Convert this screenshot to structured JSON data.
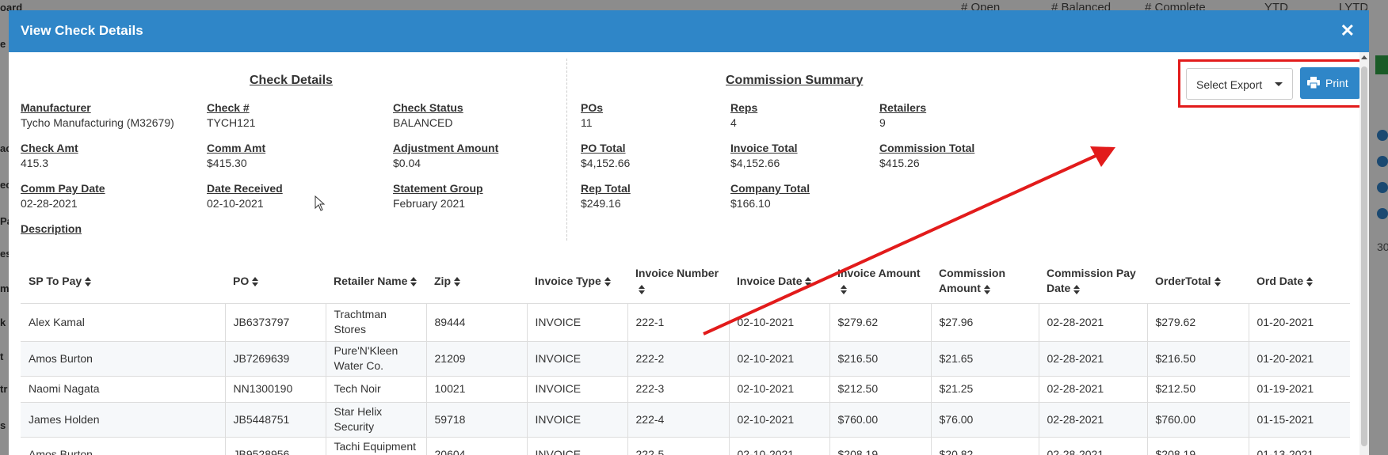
{
  "background": {
    "header_cols": [
      "# Open",
      "# Balanced",
      "# Complete",
      "YTD",
      "LYTD"
    ],
    "side_fragments": [
      "oard",
      "e",
      "ac",
      "ec",
      "Pa",
      "es",
      "mi",
      "k",
      "t",
      "tr",
      "s"
    ],
    "right_number": "30"
  },
  "modal": {
    "title": "View Check Details",
    "close_icon": "close-icon"
  },
  "check_details": {
    "title": "Check Details",
    "fields": [
      {
        "label": "Manufacturer",
        "value": "Tycho Manufacturing (M32679)"
      },
      {
        "label": "Check #",
        "value": "TYCH121"
      },
      {
        "label": "Check Status",
        "value": "BALANCED"
      },
      {
        "label": "Check Amt",
        "value": "415.3"
      },
      {
        "label": "Comm Amt",
        "value": "$415.30"
      },
      {
        "label": "Adjustment Amount",
        "value": "$0.04"
      },
      {
        "label": "Comm Pay Date",
        "value": "02-28-2021"
      },
      {
        "label": "Date Received",
        "value": "02-10-2021"
      },
      {
        "label": "Statement Group",
        "value": "February 2021"
      },
      {
        "label": "Description",
        "value": ""
      }
    ]
  },
  "commission_summary": {
    "title": "Commission Summary",
    "fields": [
      {
        "label": "POs",
        "value": "11"
      },
      {
        "label": "Reps",
        "value": "4"
      },
      {
        "label": "Retailers",
        "value": "9"
      },
      {
        "label": "PO Total",
        "value": "$4,152.66"
      },
      {
        "label": "Invoice Total",
        "value": "$4,152.66"
      },
      {
        "label": "Commission Total",
        "value": "$415.26"
      },
      {
        "label": "Rep Total",
        "value": "$249.16"
      },
      {
        "label": "Company Total",
        "value": "$166.10"
      }
    ]
  },
  "export": {
    "select_label": "Select Export",
    "print_label": "Print"
  },
  "table": {
    "columns": [
      "SP To Pay",
      "PO",
      "Retailer Name",
      "Zip",
      "Invoice Type",
      "Invoice Number",
      "Invoice Date",
      "Invoice Amount",
      "Commission Amount",
      "Commission Pay Date",
      "OrderTotal",
      "Ord Date"
    ],
    "rows": [
      [
        "Alex Kamal",
        "JB6373797",
        "Trachtman Stores",
        "89444",
        "INVOICE",
        "222-1",
        "02-10-2021",
        "$279.62",
        "$27.96",
        "02-28-2021",
        "$279.62",
        "01-20-2021"
      ],
      [
        "Amos Burton",
        "JB7269639",
        "Pure'N'Kleen Water Co.",
        "21209",
        "INVOICE",
        "222-2",
        "02-10-2021",
        "$216.50",
        "$21.65",
        "02-28-2021",
        "$216.50",
        "01-20-2021"
      ],
      [
        "Naomi Nagata",
        "NN1300190",
        "Tech Noir",
        "10021",
        "INVOICE",
        "222-3",
        "02-10-2021",
        "$212.50",
        "$21.25",
        "02-28-2021",
        "$212.50",
        "01-19-2021"
      ],
      [
        "James Holden",
        "JB5448751",
        "Star Helix Security",
        "59718",
        "INVOICE",
        "222-4",
        "02-10-2021",
        "$760.00",
        "$76.00",
        "02-28-2021",
        "$760.00",
        "01-15-2021"
      ],
      [
        "Amos Burton",
        "JB9528956",
        "Tachi Equipment Rental",
        "20604",
        "INVOICE",
        "222-5",
        "02-10-2021",
        "$208.19",
        "$20.82",
        "02-28-2021",
        "$208.19",
        "01-13-2021"
      ]
    ]
  },
  "colors": {
    "header_blue": "#2f86c8",
    "annotation_red": "#e21b1b"
  }
}
